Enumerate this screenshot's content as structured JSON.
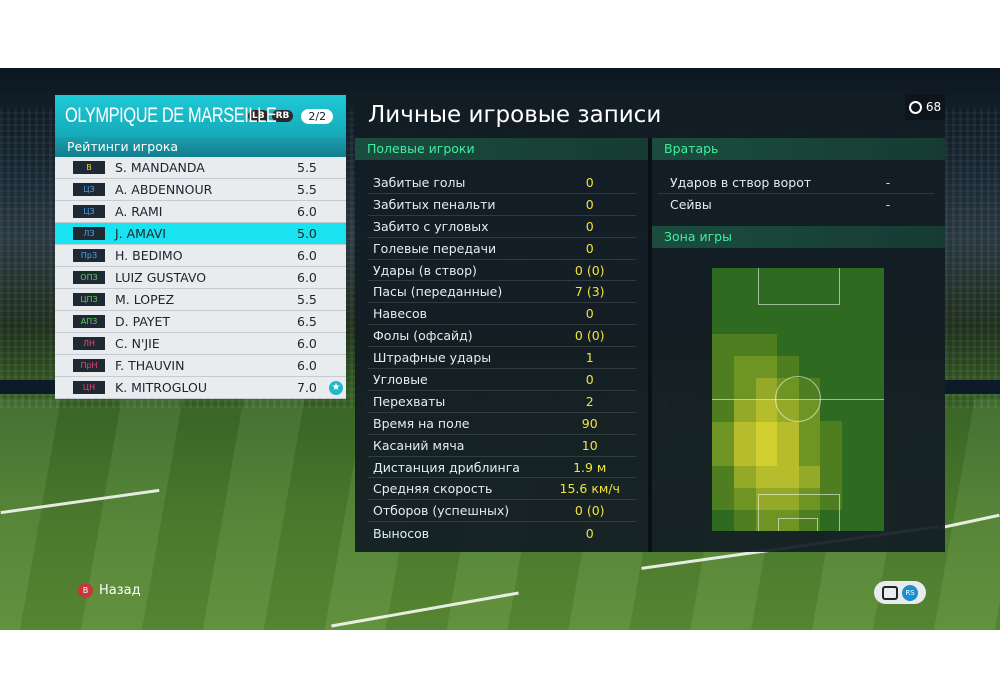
{
  "team": {
    "name": "OLYMPIQUE DE MARSEILLE",
    "lb_label": "LB",
    "rb_label": "RB",
    "page_indicator": "2/2"
  },
  "ratings_title": "Рейтинги игрока",
  "players": [
    {
      "pos": "В",
      "pos_color": "#f2d21e",
      "name": "S. MANDANDA",
      "rating": "5.5"
    },
    {
      "pos": "ЦЗ",
      "pos_color": "#49a3e8",
      "name": "A. ABDENNOUR",
      "rating": "5.5"
    },
    {
      "pos": "ЦЗ",
      "pos_color": "#49a3e8",
      "name": "A. RAMI",
      "rating": "6.0"
    },
    {
      "pos": "ЛЗ",
      "pos_color": "#49a3e8",
      "name": "J. AMAVI",
      "rating": "5.0"
    },
    {
      "pos": "ПрЗ",
      "pos_color": "#49a3e8",
      "name": "H. BEDIMO",
      "rating": "6.0"
    },
    {
      "pos": "ОПЗ",
      "pos_color": "#56d35a",
      "name": "LUIZ GUSTAVO",
      "rating": "6.0"
    },
    {
      "pos": "ЦПЗ",
      "pos_color": "#56d35a",
      "name": "M. LOPEZ",
      "rating": "5.5"
    },
    {
      "pos": "АПЗ",
      "pos_color": "#56d35a",
      "name": "D. PAYET",
      "rating": "6.5"
    },
    {
      "pos": "ЛН",
      "pos_color": "#e84b6a",
      "name": "C. N'JIE",
      "rating": "6.0"
    },
    {
      "pos": "ПрН",
      "pos_color": "#e84b6a",
      "name": "F. THAUVIN",
      "rating": "6.0"
    },
    {
      "pos": "ЦН",
      "pos_color": "#e84b6a",
      "name": "K. MITROGLOU",
      "rating": "7.0"
    }
  ],
  "selected_player_index": 3,
  "star_icon": "star-badge-icon",
  "main": {
    "title": "Личные игровые записи",
    "timer": "68",
    "outfield_header": "Полевые игроки",
    "goalkeeper_header": "Вратарь",
    "zone_header": "Зона игры"
  },
  "stats": [
    {
      "label": "Забитые голы",
      "value": "0"
    },
    {
      "label": "Забитых пенальти",
      "value": "0"
    },
    {
      "label": "Забито с угловых",
      "value": "0"
    },
    {
      "label": "Голевые передачи",
      "value": "0"
    },
    {
      "label": "Удары (в створ)",
      "value": "0 (0)"
    },
    {
      "label": "Пасы (переданные)",
      "value": "7 (3)"
    },
    {
      "label": "Навесов",
      "value": "0"
    },
    {
      "label": "Фолы (офсайд)",
      "value": "0 (0)"
    },
    {
      "label": "Штрафные удары",
      "value": "1"
    },
    {
      "label": "Угловые",
      "value": "0"
    },
    {
      "label": "Перехваты",
      "value": "2"
    },
    {
      "label": "Время на поле",
      "value": "90"
    },
    {
      "label": "Касаний мяча",
      "value": "10"
    },
    {
      "label": "Дистанция дриблинга",
      "value": "1.9 м"
    },
    {
      "label": "Средняя скорость",
      "value": "15.6 км/ч"
    },
    {
      "label": "Отборов (успешных)",
      "value": "0 (0)"
    },
    {
      "label": "Выносов",
      "value": "0"
    }
  ],
  "gk_stats": [
    {
      "label": "Ударов в створ ворот",
      "value": "-"
    },
    {
      "label": "Сейвы",
      "value": "-"
    }
  ],
  "heatmap": {
    "cols": 8,
    "rows": 12,
    "levels": [
      [
        0,
        0,
        0,
        0,
        0,
        0,
        0,
        0
      ],
      [
        0,
        0,
        0,
        0,
        0,
        0,
        0,
        0
      ],
      [
        0,
        0,
        0,
        0,
        0,
        0,
        0,
        0
      ],
      [
        1,
        1,
        1,
        0,
        0,
        0,
        0,
        0
      ],
      [
        1,
        2,
        2,
        1,
        0,
        0,
        0,
        0
      ],
      [
        1,
        2,
        3,
        2,
        1,
        0,
        0,
        0
      ],
      [
        1,
        3,
        4,
        3,
        2,
        0,
        0,
        0
      ],
      [
        2,
        4,
        5,
        4,
        2,
        1,
        0,
        0
      ],
      [
        2,
        4,
        5,
        4,
        2,
        1,
        0,
        0
      ],
      [
        1,
        3,
        4,
        4,
        3,
        1,
        0,
        0
      ],
      [
        1,
        2,
        3,
        3,
        2,
        1,
        0,
        0
      ],
      [
        0,
        1,
        2,
        2,
        1,
        0,
        0,
        0
      ]
    ],
    "colors": [
      "#2e6b20",
      "#4f7e20",
      "#6e9524",
      "#93a927",
      "#b5bd2c",
      "#d2d030"
    ]
  },
  "footer": {
    "back_button_glyph": "B",
    "back_label": "Назад",
    "rs_glyph": "RS"
  }
}
